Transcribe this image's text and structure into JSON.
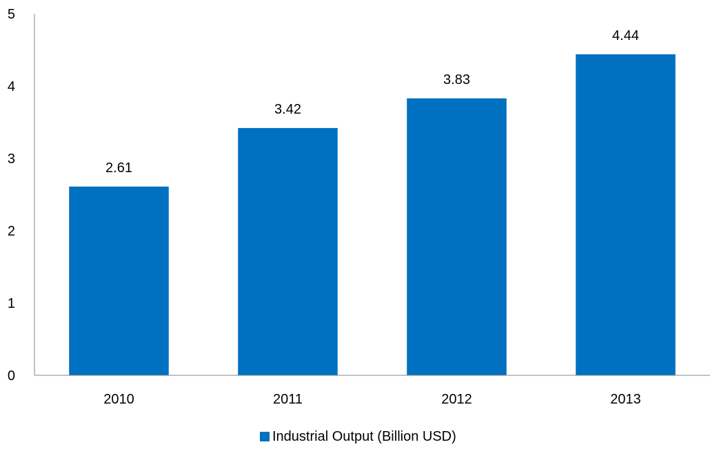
{
  "chart_data": {
    "type": "bar",
    "categories": [
      "2010",
      "2011",
      "2012",
      "2013"
    ],
    "series": [
      {
        "name": "Industrial Output (Billion USD)",
        "values": [
          2.61,
          3.42,
          3.83,
          4.44
        ],
        "color": "#0070C0"
      }
    ],
    "data_labels": [
      "2.61",
      "3.42",
      "3.83",
      "4.44"
    ],
    "ylim": [
      0,
      5
    ],
    "yticks": [
      0,
      1,
      2,
      3,
      4,
      5
    ],
    "ytick_labels": [
      "0",
      "1",
      "2",
      "3",
      "4",
      "5"
    ],
    "grid": false,
    "legend_position": "bottom",
    "title": "",
    "xlabel": "",
    "ylabel": ""
  },
  "colors": {
    "axis": "#868686",
    "text": "#000000"
  }
}
